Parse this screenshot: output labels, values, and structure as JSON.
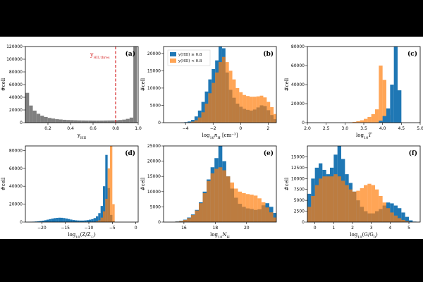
{
  "colors": {
    "blue": "#1f77b4",
    "orange": "#ff7f0e",
    "gray": "#7f7f7f",
    "threshold": "#d62728"
  },
  "legend": {
    "entries": [
      "y(HII) ≥ 0.8",
      "y(HII) < 0.8"
    ],
    "placement": "upper-left"
  },
  "chart_data": [
    {
      "type": "bar",
      "panel": "(a)",
      "xlabel": "yHII",
      "ylabel": "#cell",
      "xlim": [
        0,
        1
      ],
      "ylim": [
        0,
        120000
      ],
      "xticks": [
        0.2,
        0.4,
        0.6,
        0.8,
        1.0
      ],
      "xtick_labels": [
        "0.2",
        "0.4",
        "0.6",
        "0.8",
        "1.0"
      ],
      "yticks": [
        0,
        20000,
        40000,
        60000,
        80000,
        100000,
        120000
      ],
      "ytick_labels": [
        "0",
        "20000",
        "40000",
        "60000",
        "80000",
        "100000",
        "120000"
      ],
      "threshold": {
        "x": 0.8,
        "label": "yHII,thres"
      },
      "bin_start": 0,
      "bin_width": 0.033,
      "series": [
        {
          "color": "gray",
          "values": [
            47000,
            27000,
            19000,
            14000,
            11000,
            9000,
            7500,
            6500,
            5500,
            5000,
            4500,
            4200,
            4000,
            3800,
            3600,
            3500,
            3400,
            3400,
            3300,
            3300,
            3300,
            3400,
            3500,
            3600,
            3800,
            4200,
            4800,
            6000,
            8000,
            122000
          ]
        }
      ]
    },
    {
      "type": "bar",
      "panel": "(b)",
      "xlabel": "log10 nH [cm⁻³]",
      "ylabel": "#cell",
      "xlim": [
        -5.6,
        2.6
      ],
      "ylim": [
        0,
        22000
      ],
      "xticks": [
        -4,
        -2,
        0,
        2
      ],
      "xtick_labels": [
        "−4",
        "−2",
        "0",
        "2"
      ],
      "yticks": [
        0,
        5000,
        10000,
        15000,
        20000
      ],
      "ytick_labels": [
        "0",
        "5000",
        "10000",
        "15000",
        "20000"
      ],
      "show_legend": true,
      "bin_start": -5.6,
      "bin_width": 0.25,
      "series": [
        {
          "color": "blue",
          "values": [
            0,
            0,
            0,
            0,
            0,
            50,
            150,
            350,
            800,
            1800,
            3500,
            6000,
            9000,
            12500,
            15500,
            18000,
            23000,
            21500,
            14500,
            9500,
            7200,
            5500,
            4600,
            4000,
            3700,
            3500,
            3800,
            4400,
            5000,
            4800,
            3600,
            2200,
            1000
          ]
        },
        {
          "color": "orange",
          "values": [
            0,
            0,
            0,
            0,
            0,
            0,
            0,
            100,
            300,
            700,
            1500,
            3000,
            5500,
            8500,
            11500,
            14500,
            17500,
            19000,
            17500,
            15000,
            12500,
            10000,
            8800,
            8000,
            7700,
            7500,
            7500,
            7600,
            7800,
            7300,
            6000,
            4500,
            2500
          ]
        }
      ]
    },
    {
      "type": "bar",
      "panel": "(c)",
      "xlabel": "log10 T",
      "ylabel": "#cell",
      "xlim": [
        2.0,
        5.0
      ],
      "ylim": [
        0,
        80000
      ],
      "xticks": [
        2.0,
        2.5,
        3.0,
        3.5,
        4.0,
        4.5,
        5.0
      ],
      "xtick_labels": [
        "2.0",
        "2.5",
        "3.0",
        "3.5",
        "4.0",
        "4.5",
        "5.0"
      ],
      "yticks": [
        0,
        20000,
        40000,
        60000,
        80000
      ],
      "ytick_labels": [
        "0",
        "20000",
        "40000",
        "60000",
        "80000"
      ],
      "bin_start": 2.0,
      "bin_width": 0.1,
      "series": [
        {
          "color": "orange",
          "values": [
            0,
            0,
            0,
            0,
            0,
            0,
            0,
            0,
            0,
            0,
            100,
            300,
            800,
            1500,
            2500,
            4000,
            6000,
            9000,
            14000,
            60000,
            45000,
            8000,
            0,
            0,
            0,
            0,
            0,
            0,
            0,
            0
          ]
        },
        {
          "color": "blue",
          "values": [
            0,
            0,
            0,
            0,
            0,
            0,
            0,
            0,
            0,
            0,
            0,
            0,
            0,
            0,
            0,
            0,
            0,
            0,
            0,
            2000,
            7000,
            15000,
            40000,
            84000,
            34000,
            0,
            0,
            0,
            0,
            0
          ]
        }
      ]
    },
    {
      "type": "bar",
      "panel": "(d)",
      "xlabel": "log10(Z/Z☉)",
      "ylabel": "#cell",
      "xlim": [
        -23.5,
        0.5
      ],
      "ylim": [
        0,
        85000
      ],
      "xticks": [
        -20,
        -15,
        -10,
        -5,
        0
      ],
      "xtick_labels": [
        "−20",
        "−15",
        "−10",
        "−5",
        "0"
      ],
      "yticks": [
        0,
        20000,
        40000,
        60000,
        80000
      ],
      "ytick_labels": [
        "0",
        "20000",
        "40000",
        "60000",
        "80000"
      ],
      "bin_start": -23.5,
      "bin_width": 0.5,
      "series": [
        {
          "color": "blue",
          "values": [
            100,
            200,
            300,
            450,
            650,
            900,
            1200,
            1600,
            2100,
            2700,
            3300,
            3900,
            4400,
            4700,
            4900,
            4800,
            4500,
            4000,
            3400,
            2800,
            2300,
            2000,
            1800,
            1700,
            1700,
            1900,
            2200,
            2700,
            3300,
            4500,
            6500,
            10000,
            18000,
            40000,
            75000,
            38000,
            8000,
            1000
          ]
        },
        {
          "color": "orange",
          "values": [
            0,
            0,
            0,
            0,
            0,
            0,
            0,
            0,
            0,
            0,
            0,
            0,
            0,
            0,
            0,
            0,
            0,
            0,
            0,
            0,
            0,
            0,
            0,
            0,
            0,
            0,
            0,
            0,
            100,
            300,
            800,
            2000,
            5000,
            12000,
            26000,
            60000,
            90000,
            20000
          ]
        }
      ]
    },
    {
      "type": "bar",
      "panel": "(e)",
      "xlabel": "log10 NH",
      "ylabel": "#cell",
      "xlim": [
        14.7,
        21.9
      ],
      "ylim": [
        0,
        25000
      ],
      "xticks": [
        16,
        18,
        20
      ],
      "xtick_labels": [
        "16",
        "18",
        "20"
      ],
      "yticks": [
        0,
        5000,
        10000,
        15000,
        20000,
        25000
      ],
      "ytick_labels": [
        "0",
        "5000",
        "10000",
        "15000",
        "20000",
        "25000"
      ],
      "bin_start": 14.7,
      "bin_width": 0.25,
      "series": [
        {
          "color": "blue",
          "values": [
            0,
            0,
            0,
            200,
            400,
            800,
            1500,
            2500,
            4000,
            6500,
            10000,
            14000,
            18000,
            21000,
            25000,
            20000,
            15000,
            11000,
            8000,
            6000,
            5000,
            4500,
            4300,
            4000,
            4200,
            5500,
            6200,
            5000,
            3000,
            1000
          ]
        },
        {
          "color": "orange",
          "values": [
            0,
            0,
            0,
            150,
            300,
            700,
            1300,
            2300,
            3800,
            6200,
            9500,
            13500,
            16000,
            17500,
            18000,
            17000,
            15000,
            13000,
            11000,
            10000,
            9500,
            9200,
            9000,
            8700,
            7800,
            6500,
            4800,
            3200,
            1500,
            500
          ]
        }
      ]
    },
    {
      "type": "bar",
      "panel": "(f)",
      "xlabel": "log10(G/G0)",
      "ylabel": "#cell",
      "xlim": [
        -0.4,
        5.6
      ],
      "ylim": [
        0,
        17500
      ],
      "xticks": [
        0,
        1,
        2,
        3,
        4,
        5
      ],
      "xtick_labels": [
        "0",
        "1",
        "2",
        "3",
        "4",
        "5"
      ],
      "yticks": [
        0,
        2500,
        5000,
        7500,
        10000,
        12500,
        15000
      ],
      "ytick_labels": [
        "0",
        "2500",
        "5000",
        "7500",
        "10000",
        "12500",
        "15000"
      ],
      "bin_start": -0.4,
      "bin_width": 0.2,
      "series": [
        {
          "color": "blue",
          "values": [
            6500,
            10000,
            12500,
            13500,
            12000,
            11000,
            12500,
            15500,
            17500,
            14500,
            11000,
            9000,
            7000,
            5000,
            3500,
            2500,
            2000,
            2000,
            2500,
            3000,
            3800,
            4500,
            4300,
            3800,
            3200,
            2200,
            1200,
            400,
            100,
            0
          ]
        },
        {
          "color": "orange",
          "values": [
            3500,
            6000,
            8500,
            10000,
            10500,
            10500,
            10500,
            11000,
            10500,
            9500,
            8500,
            7500,
            7000,
            7200,
            7800,
            8500,
            8800,
            8500,
            7500,
            6000,
            4500,
            3200,
            2200,
            1500,
            900,
            500,
            200,
            0,
            0,
            0
          ]
        }
      ]
    }
  ]
}
